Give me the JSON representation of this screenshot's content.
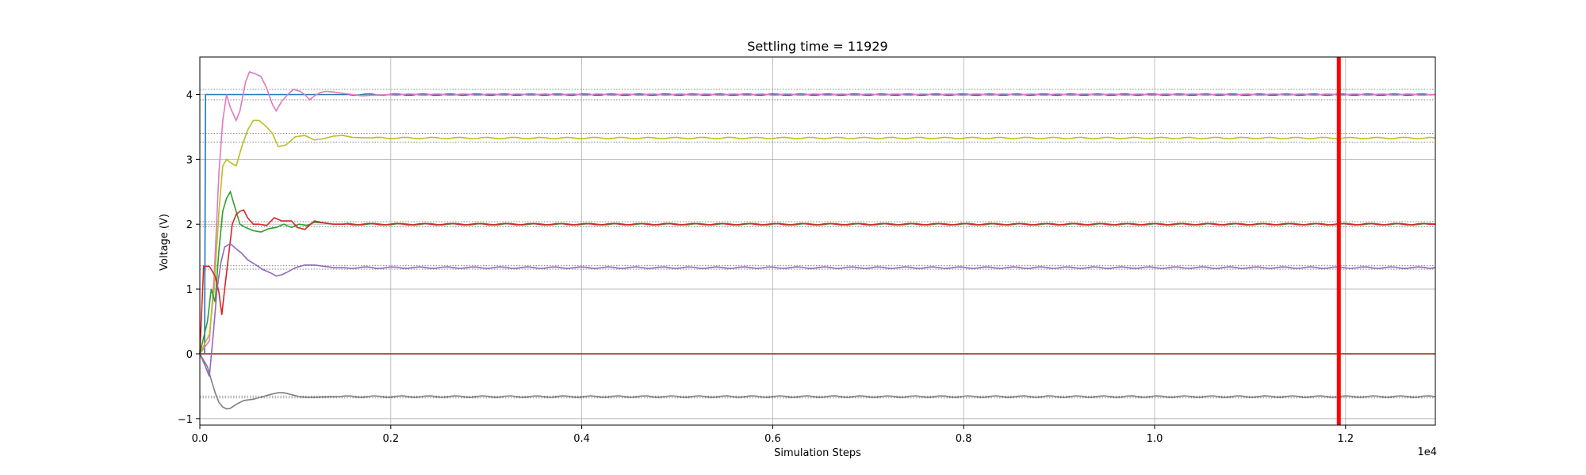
{
  "chart_data": {
    "type": "line",
    "title": "Settling time = 11929",
    "xlabel": "Simulation Steps",
    "ylabel": "Voltage (V)",
    "x_offset_label": "1e4",
    "xlim": [
      0,
      12940
    ],
    "ylim": [
      -1.1,
      4.58
    ],
    "x_ticks": [
      0,
      2000,
      4000,
      6000,
      8000,
      10000,
      12000
    ],
    "x_tick_labels": [
      "0.0",
      "0.2",
      "0.4",
      "0.6",
      "0.8",
      "1.0",
      "1.2"
    ],
    "y_ticks": [
      -1,
      0,
      1,
      2,
      3,
      4
    ],
    "y_tick_labels": [
      "−1",
      "0",
      "1",
      "2",
      "3",
      "4"
    ],
    "grid": true,
    "settling_time": 11929,
    "settling_line_color": "#ff0000",
    "tolerance_bands": [
      {
        "lower": 3.92,
        "upper": 4.08,
        "color": "#808080"
      },
      {
        "lower": 3.2667,
        "upper": 3.4,
        "color": "#808080"
      },
      {
        "lower": 1.96,
        "upper": 2.04,
        "color": "#808080"
      },
      {
        "lower": 1.3067,
        "upper": 1.36,
        "color": "#808080"
      },
      {
        "lower": -0.68,
        "upper": -0.6533,
        "color": "#808080"
      }
    ],
    "series": [
      {
        "color": "#1f77b4",
        "x": [
          0,
          50,
          60,
          12940
        ],
        "y": [
          0,
          0,
          4.0,
          4.0
        ]
      },
      {
        "color": "#ff7f0e",
        "x": [
          0,
          12940
        ],
        "y": [
          0,
          0
        ]
      },
      {
        "color": "#8c564b",
        "x": [
          0,
          12940
        ],
        "y": [
          0,
          0
        ]
      },
      {
        "color": "#e377c2",
        "x": [
          0,
          100,
          150,
          200,
          240,
          280,
          320,
          380,
          420,
          480,
          520,
          580,
          640,
          700,
          760,
          800,
          860,
          920,
          980,
          1050,
          1100,
          1150,
          1200,
          1260,
          1320,
          1400,
          1500,
          1600,
          1700,
          1800,
          2000,
          12940
        ],
        "y": [
          0,
          0.2,
          1.2,
          2.8,
          3.6,
          4.0,
          3.8,
          3.6,
          3.75,
          4.2,
          4.35,
          4.32,
          4.28,
          4.1,
          3.85,
          3.75,
          3.9,
          4.0,
          4.08,
          4.05,
          4.0,
          3.92,
          3.98,
          4.03,
          4.05,
          4.04,
          4.02,
          4.0,
          3.98,
          3.99,
          4.0,
          4.0
        ]
      },
      {
        "color": "#bcbd22",
        "x": [
          0,
          100,
          150,
          200,
          240,
          280,
          320,
          380,
          440,
          500,
          560,
          620,
          660,
          700,
          760,
          820,
          900,
          1000,
          1100,
          1200,
          1300,
          1400,
          1500,
          1600,
          1800,
          2000,
          12940
        ],
        "y": [
          0,
          0.3,
          1.0,
          2.2,
          2.9,
          3.0,
          2.95,
          2.9,
          3.2,
          3.45,
          3.6,
          3.6,
          3.55,
          3.5,
          3.4,
          3.2,
          3.22,
          3.35,
          3.37,
          3.3,
          3.32,
          3.36,
          3.37,
          3.34,
          3.33,
          3.33,
          3.33
        ]
      },
      {
        "color": "#2ca02c",
        "x": [
          0,
          80,
          120,
          160,
          200,
          240,
          280,
          320,
          360,
          420,
          480,
          560,
          640,
          720,
          800,
          880,
          960,
          1040,
          1120,
          1200,
          1300,
          1400,
          1500,
          1700,
          2000,
          12940
        ],
        "y": [
          0,
          0.5,
          1.0,
          0.8,
          1.6,
          2.2,
          2.4,
          2.5,
          2.3,
          2.0,
          1.95,
          1.9,
          1.88,
          1.93,
          1.95,
          2.0,
          1.95,
          2.0,
          1.98,
          2.03,
          2.02,
          2.0,
          2.0,
          2.0,
          2.0,
          2.0
        ]
      },
      {
        "color": "#d62728",
        "x": [
          0,
          40,
          100,
          160,
          200,
          230,
          260,
          300,
          340,
          380,
          420,
          460,
          500,
          560,
          620,
          700,
          780,
          860,
          960,
          1020,
          1100,
          1200,
          1300,
          1400,
          1600,
          2000,
          12940
        ],
        "y": [
          0,
          1.35,
          1.35,
          1.2,
          0.95,
          0.6,
          1.0,
          1.5,
          2.0,
          2.15,
          2.2,
          2.22,
          2.1,
          2.0,
          2.0,
          1.98,
          2.1,
          2.05,
          2.05,
          1.95,
          1.92,
          2.05,
          2.02,
          2.0,
          2.0,
          2.0,
          2.0
        ]
      },
      {
        "color": "#9467bd",
        "x": [
          0,
          60,
          100,
          140,
          180,
          220,
          260,
          320,
          380,
          440,
          500,
          580,
          660,
          740,
          800,
          860,
          940,
          1000,
          1100,
          1200,
          1300,
          1400,
          1600,
          1800,
          2000,
          12940
        ],
        "y": [
          0,
          -0.2,
          -0.35,
          0.3,
          1.0,
          1.4,
          1.65,
          1.7,
          1.62,
          1.55,
          1.45,
          1.38,
          1.3,
          1.25,
          1.2,
          1.22,
          1.28,
          1.33,
          1.37,
          1.37,
          1.35,
          1.33,
          1.33,
          1.33,
          1.33,
          1.33
        ]
      },
      {
        "color": "#7f7f7f",
        "x": [
          0,
          80,
          120,
          160,
          200,
          240,
          280,
          320,
          380,
          460,
          560,
          660,
          760,
          820,
          880,
          960,
          1040,
          1120,
          1200,
          1400,
          1700,
          2000,
          12940
        ],
        "y": [
          0,
          -0.2,
          -0.4,
          -0.6,
          -0.75,
          -0.82,
          -0.85,
          -0.84,
          -0.78,
          -0.72,
          -0.7,
          -0.66,
          -0.62,
          -0.6,
          -0.6,
          -0.63,
          -0.66,
          -0.67,
          -0.67,
          -0.66,
          -0.66,
          -0.66,
          -0.66
        ]
      }
    ]
  }
}
